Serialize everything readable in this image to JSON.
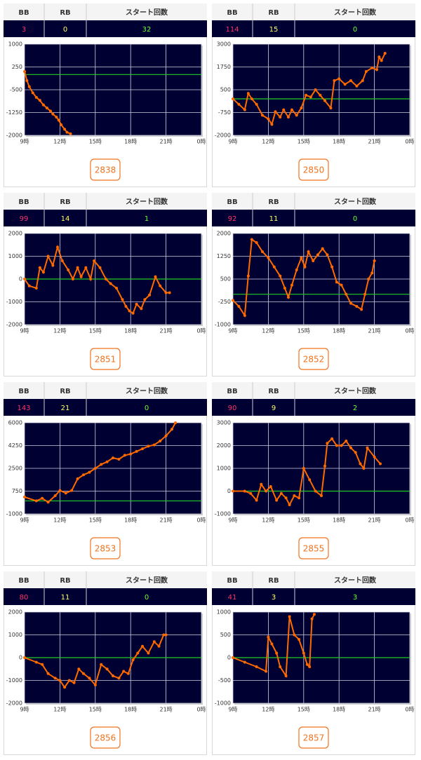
{
  "panels": [
    {
      "columns": [
        "BB",
        "RB",
        "スタート回数"
      ],
      "values": [
        3,
        0,
        32
      ],
      "button": "2838"
    },
    {
      "columns": [
        "BB",
        "RB",
        "スタート回数"
      ],
      "values": [
        114,
        15,
        0
      ],
      "button": "2850"
    },
    {
      "columns": [
        "BB",
        "RB",
        "スタート回数"
      ],
      "values": [
        99,
        14,
        1
      ],
      "button": "2851"
    },
    {
      "columns": [
        "BB",
        "RB",
        "スタート回数"
      ],
      "values": [
        92,
        11,
        0
      ],
      "button": "2852"
    },
    {
      "columns": [
        "BB",
        "RB",
        "スタート回数"
      ],
      "values": [
        143,
        21,
        0
      ],
      "button": "2853"
    },
    {
      "columns": [
        "BB",
        "RB",
        "スタート回数"
      ],
      "values": [
        90,
        9,
        2
      ],
      "button": "2855"
    },
    {
      "columns": [
        "BB",
        "RB",
        "スタート回数"
      ],
      "values": [
        80,
        11,
        0
      ],
      "button": "2856"
    },
    {
      "columns": [
        "BB",
        "RB",
        "スタート回数"
      ],
      "values": [
        41,
        3,
        3
      ],
      "button": "2857"
    }
  ],
  "chart_data": [
    {
      "type": "line",
      "color": "#ff6a00",
      "xlim": [
        9,
        24
      ],
      "ylim": [
        -2000,
        1000
      ],
      "xticks": [
        {
          "value": 9,
          "label": "9時"
        },
        {
          "value": 12,
          "label": "12時"
        },
        {
          "value": 15,
          "label": "15時"
        },
        {
          "value": 18,
          "label": "18時"
        },
        {
          "value": 21,
          "label": "21時"
        },
        {
          "value": 24,
          "label": "0時"
        }
      ],
      "yticks": [
        -2000,
        -1250,
        -500,
        250,
        1000
      ],
      "x": [
        9.0,
        9.2,
        9.4,
        9.7,
        10.0,
        10.3,
        10.6,
        10.9,
        11.2,
        11.4,
        11.7,
        11.9,
        12.1,
        12.4,
        12.6,
        12.9
      ],
      "values": [
        100,
        -200,
        -400,
        -600,
        -750,
        -850,
        -1000,
        -1100,
        -1200,
        -1300,
        -1400,
        -1500,
        -1650,
        -1800,
        -1900,
        -1950
      ]
    },
    {
      "type": "line",
      "color": "#ff6a00",
      "xlim": [
        9,
        24
      ],
      "ylim": [
        -2000,
        3000
      ],
      "xticks": [
        {
          "value": 9,
          "label": "9時"
        },
        {
          "value": 12,
          "label": "12時"
        },
        {
          "value": 15,
          "label": "15時"
        },
        {
          "value": 18,
          "label": "18時"
        },
        {
          "value": 21,
          "label": "21時"
        },
        {
          "value": 24,
          "label": "0時"
        }
      ],
      "yticks": [
        -2000,
        -750,
        500,
        1750,
        3000
      ],
      "x": [
        9.0,
        9.5,
        10.0,
        10.3,
        10.6,
        11.0,
        11.5,
        12.0,
        12.3,
        12.6,
        13.0,
        13.3,
        13.7,
        14.0,
        14.4,
        14.8,
        15.2,
        15.6,
        16.0,
        16.4,
        16.8,
        17.3,
        17.6,
        18.0,
        18.5,
        19.0,
        19.5,
        20.0,
        20.3,
        20.8,
        21.2,
        21.4,
        21.6,
        21.9
      ],
      "values": [
        0,
        -300,
        -600,
        300,
        0,
        -300,
        -900,
        -1100,
        -1400,
        -700,
        -1000,
        -600,
        -1000,
        -600,
        -900,
        -500,
        200,
        100,
        500,
        200,
        -100,
        -500,
        1000,
        1100,
        800,
        1000,
        700,
        1000,
        1500,
        1700,
        1600,
        2300,
        2100,
        2500
      ]
    },
    {
      "type": "line",
      "color": "#ff6a00",
      "xlim": [
        9,
        24
      ],
      "ylim": [
        -2000,
        2000
      ],
      "xticks": [
        {
          "value": 9,
          "label": "9時"
        },
        {
          "value": 12,
          "label": "12時"
        },
        {
          "value": 15,
          "label": "15時"
        },
        {
          "value": 18,
          "label": "18時"
        },
        {
          "value": 21,
          "label": "21時"
        },
        {
          "value": 24,
          "label": "0時"
        }
      ],
      "yticks": [
        -2000,
        -1000,
        0,
        1000,
        2000
      ],
      "x": [
        9.0,
        9.4,
        10.0,
        10.3,
        10.6,
        11.0,
        11.4,
        11.8,
        12.2,
        12.7,
        13.1,
        13.5,
        13.8,
        14.2,
        14.6,
        14.9,
        15.4,
        15.9,
        16.3,
        16.8,
        17.3,
        17.6,
        17.9,
        18.2,
        18.5,
        18.9,
        19.2,
        19.6,
        20.1,
        20.5,
        21.0,
        21.3
      ],
      "values": [
        0,
        -300,
        -400,
        500,
        300,
        1000,
        600,
        1400,
        800,
        400,
        0,
        500,
        100,
        500,
        0,
        800,
        500,
        0,
        -200,
        -400,
        -900,
        -1200,
        -1400,
        -1500,
        -1100,
        -1300,
        -900,
        -700,
        100,
        -300,
        -600,
        -600
      ]
    },
    {
      "type": "line",
      "color": "#ff6a00",
      "xlim": [
        9,
        24
      ],
      "ylim": [
        -1000,
        2000
      ],
      "xticks": [
        {
          "value": 9,
          "label": "9時"
        },
        {
          "value": 12,
          "label": "12時"
        },
        {
          "value": 15,
          "label": "15時"
        },
        {
          "value": 18,
          "label": "18時"
        },
        {
          "value": 21,
          "label": "21時"
        },
        {
          "value": 24,
          "label": "0時"
        }
      ],
      "yticks": [
        -1000,
        -250,
        500,
        1250,
        2000
      ],
      "x": [
        9.0,
        9.5,
        10.0,
        10.3,
        10.6,
        11.0,
        11.5,
        12.0,
        12.5,
        13.0,
        13.4,
        13.7,
        14.0,
        14.4,
        14.8,
        15.1,
        15.4,
        15.8,
        16.2,
        16.6,
        17.0,
        17.4,
        17.8,
        18.2,
        18.6,
        19.0,
        19.5,
        19.9,
        20.2,
        20.5,
        20.8,
        21.0
      ],
      "values": [
        -200,
        -400,
        -700,
        600,
        1800,
        1700,
        1400,
        1200,
        900,
        600,
        200,
        -100,
        300,
        800,
        1200,
        900,
        1400,
        1100,
        1300,
        1500,
        1300,
        900,
        400,
        300,
        0,
        -300,
        -400,
        -500,
        0,
        500,
        700,
        1100
      ]
    },
    {
      "type": "line",
      "color": "#ff6a00",
      "xlim": [
        9,
        24
      ],
      "ylim": [
        -1000,
        6000
      ],
      "xticks": [
        {
          "value": 9,
          "label": "9時"
        },
        {
          "value": 12,
          "label": "12時"
        },
        {
          "value": 15,
          "label": "15時"
        },
        {
          "value": 18,
          "label": "18時"
        },
        {
          "value": 21,
          "label": "21時"
        },
        {
          "value": 24,
          "label": "0時"
        }
      ],
      "yticks": [
        -1000,
        750,
        2500,
        4250,
        6000
      ],
      "x": [
        9.0,
        10.0,
        10.5,
        11.0,
        11.6,
        12.0,
        12.5,
        13.0,
        13.5,
        14.0,
        14.5,
        15.0,
        15.5,
        16.0,
        16.5,
        17.0,
        17.5,
        18.0,
        18.5,
        19.0,
        19.5,
        20.0,
        20.5,
        21.0,
        21.5,
        21.8
      ],
      "values": [
        300,
        0,
        200,
        -100,
        400,
        800,
        600,
        800,
        1700,
        2000,
        2200,
        2500,
        2800,
        3000,
        3300,
        3200,
        3500,
        3600,
        3800,
        4000,
        4200,
        4300,
        4600,
        5000,
        5500,
        6000
      ]
    },
    {
      "type": "line",
      "color": "#ff6a00",
      "xlim": [
        9,
        24
      ],
      "ylim": [
        -1000,
        3000
      ],
      "xticks": [
        {
          "value": 9,
          "label": "9時"
        },
        {
          "value": 12,
          "label": "12時"
        },
        {
          "value": 15,
          "label": "15時"
        },
        {
          "value": 18,
          "label": "18時"
        },
        {
          "value": 21,
          "label": "21時"
        },
        {
          "value": 24,
          "label": "0時"
        }
      ],
      "yticks": [
        -1000,
        0,
        1000,
        2000,
        3000
      ],
      "x": [
        9.0,
        10.0,
        10.5,
        11.0,
        11.4,
        11.8,
        12.2,
        12.7,
        13.1,
        13.5,
        13.8,
        14.2,
        14.6,
        15.0,
        15.5,
        16.0,
        16.5,
        16.8,
        17.0,
        17.4,
        17.8,
        18.2,
        18.6,
        19.0,
        19.4,
        19.8,
        20.1,
        20.4,
        21.0,
        21.5
      ],
      "values": [
        0,
        0,
        -100,
        -400,
        300,
        0,
        200,
        -400,
        -100,
        -300,
        -600,
        -200,
        -300,
        1000,
        500,
        0,
        -200,
        1100,
        2100,
        2300,
        2000,
        2000,
        2200,
        1900,
        1700,
        1200,
        1000,
        1900,
        1500,
        1200
      ]
    },
    {
      "type": "line",
      "color": "#ff6a00",
      "xlim": [
        9,
        24
      ],
      "ylim": [
        -2000,
        2000
      ],
      "xticks": [
        {
          "value": 9,
          "label": "9時"
        },
        {
          "value": 12,
          "label": "12時"
        },
        {
          "value": 15,
          "label": "15時"
        },
        {
          "value": 18,
          "label": "18時"
        },
        {
          "value": 21,
          "label": "21時"
        },
        {
          "value": 24,
          "label": "0時"
        }
      ],
      "yticks": [
        -2000,
        -1000,
        0,
        1000,
        2000
      ],
      "x": [
        9.0,
        10.0,
        10.5,
        11.0,
        11.6,
        12.0,
        12.4,
        12.8,
        13.2,
        13.6,
        14.0,
        14.5,
        15.0,
        15.5,
        16.0,
        16.5,
        17.0,
        17.4,
        17.8,
        18.2,
        18.6,
        19.0,
        19.5,
        20.0,
        20.4,
        20.8,
        21.0
      ],
      "values": [
        0,
        -200,
        -300,
        -700,
        -900,
        -1000,
        -1300,
        -1000,
        -1100,
        -500,
        -700,
        -900,
        -1200,
        -300,
        -500,
        -800,
        -900,
        -600,
        -700,
        -100,
        200,
        500,
        200,
        700,
        500,
        1000,
        1000
      ]
    },
    {
      "type": "line",
      "color": "#ff6a00",
      "xlim": [
        9,
        24
      ],
      "ylim": [
        -1000,
        1000
      ],
      "xticks": [
        {
          "value": 9,
          "label": "9時"
        },
        {
          "value": 12,
          "label": "12時"
        },
        {
          "value": 15,
          "label": "15時"
        },
        {
          "value": 18,
          "label": "18時"
        },
        {
          "value": 21,
          "label": "21時"
        },
        {
          "value": 24,
          "label": "0時"
        }
      ],
      "yticks": [
        -1000,
        -500,
        0,
        500,
        1000
      ],
      "x": [
        9.0,
        10.0,
        11.0,
        11.8,
        12.0,
        12.3,
        12.7,
        13.0,
        13.5,
        13.8,
        14.2,
        14.6,
        15.0,
        15.3,
        15.5,
        15.7,
        15.9
      ],
      "values": [
        0,
        -100,
        -200,
        -300,
        450,
        300,
        100,
        -200,
        -400,
        900,
        500,
        400,
        100,
        -150,
        -200,
        850,
        950
      ]
    }
  ]
}
